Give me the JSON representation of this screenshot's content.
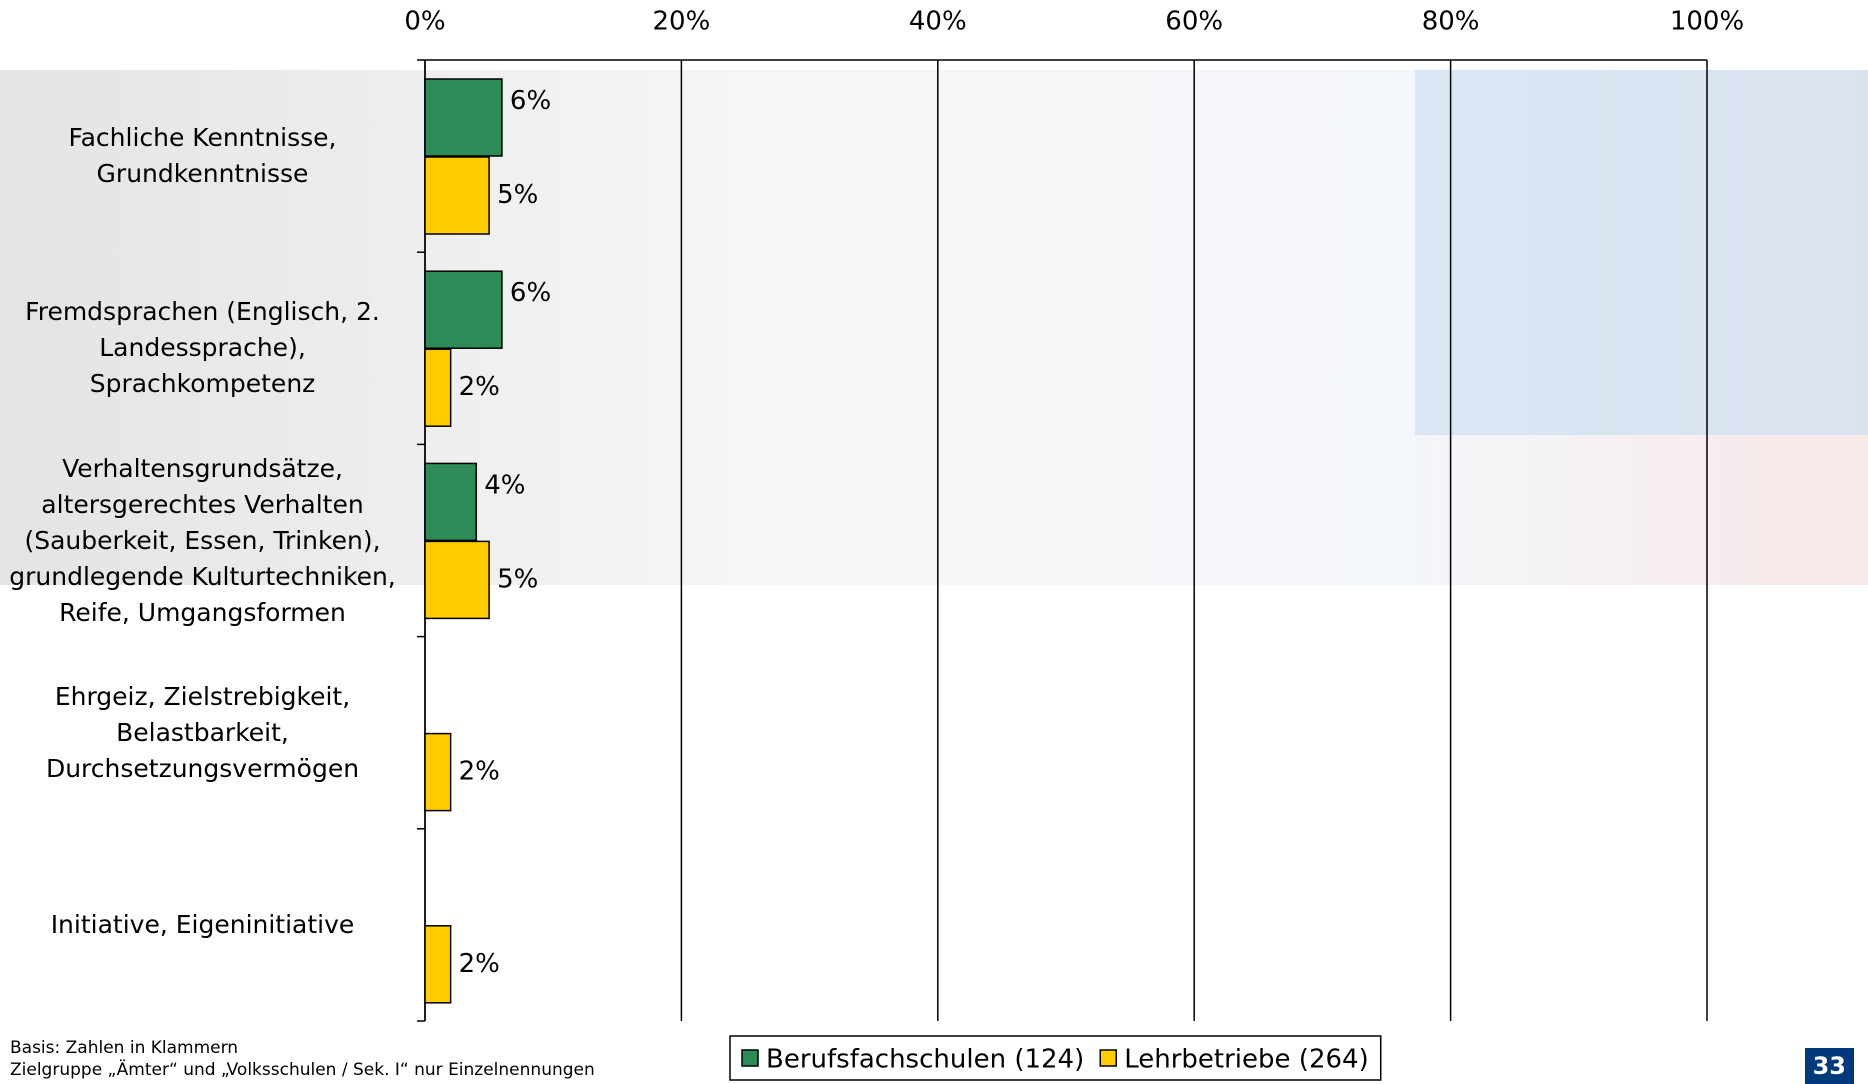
{
  "chart_data": {
    "type": "hbar",
    "categories": [
      "Fachliche Kenntnisse,\nGrundkenntnisse",
      "Fremdsprachen (Englisch, 2.\nLandessprache),\nSprachkompetenz",
      "Verhaltensgrundsätze,\naltersgerechtes Verhalten\n(Sauberkeit, Essen, Trinken),\ngrundlegende Kulturtechniken,\nReife, Umgangsformen",
      "Ehrgeiz, Zielstrebigkeit,\nBelastbarkeit,\nDurchsetzungsvermögen",
      "Initiative, Eigeninitiative"
    ],
    "series": [
      {
        "name": "Berufsfachschulen (124)",
        "color": "#2e8b57",
        "values": [
          6,
          6,
          4,
          null,
          null
        ],
        "value_labels": [
          "6%",
          "6%",
          "4%",
          null,
          null
        ]
      },
      {
        "name": "Lehrbetriebe (264)",
        "color": "#ffcc00",
        "values": [
          5,
          2,
          5,
          2,
          2
        ],
        "value_labels": [
          "5%",
          "2%",
          "5%",
          "2%",
          "2%"
        ]
      }
    ],
    "xlim": [
      0,
      100
    ],
    "xticks": [
      {
        "value": 0,
        "label": "0%"
      },
      {
        "value": 20,
        "label": "20%"
      },
      {
        "value": 40,
        "label": "40%"
      },
      {
        "value": 60,
        "label": "60%"
      },
      {
        "value": 80,
        "label": "80%"
      },
      {
        "value": 100,
        "label": "100%"
      }
    ],
    "grid": true,
    "legend": "bottom"
  },
  "footnotes": [
    "Basis: Zahlen in Klammern",
    "Zielgruppe „Ämter“ und „Volksschulen / Sek. I“ nur Einzelnennungen"
  ],
  "page_number": "33"
}
